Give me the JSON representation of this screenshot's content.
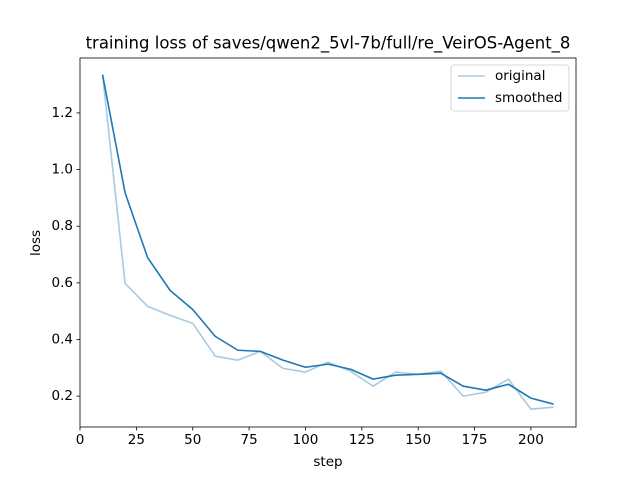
{
  "chart_data": {
    "type": "line",
    "title": "training loss of saves/qwen2_5vl-7b/full/re_VeirOS-Agent_8",
    "x_label": "step",
    "y_label": "loss",
    "x": [
      10,
      20,
      30,
      40,
      50,
      60,
      70,
      80,
      90,
      100,
      110,
      120,
      130,
      140,
      150,
      160,
      170,
      180,
      190,
      200,
      210
    ],
    "series": [
      {
        "name": "original",
        "color": "#a6cbe3",
        "values": [
          1.335,
          0.598,
          0.517,
          0.485,
          0.457,
          0.341,
          0.327,
          0.358,
          0.298,
          0.285,
          0.32,
          0.288,
          0.235,
          0.285,
          0.277,
          0.288,
          0.2,
          0.214,
          0.26,
          0.154,
          0.161
        ]
      },
      {
        "name": "smoothed",
        "color": "#1f77b4",
        "values": [
          1.335,
          0.918,
          0.689,
          0.573,
          0.506,
          0.411,
          0.362,
          0.358,
          0.327,
          0.302,
          0.313,
          0.295,
          0.26,
          0.274,
          0.277,
          0.281,
          0.235,
          0.221,
          0.242,
          0.193,
          0.172
        ]
      }
    ],
    "xlim": [
      0,
      220
    ],
    "xticks": [
      0,
      25,
      50,
      75,
      100,
      125,
      150,
      175,
      200
    ],
    "ylim": [
      0.091,
      1.394
    ],
    "yticks": [
      0.2,
      0.4,
      0.6,
      0.8,
      {
        "value": 1,
        "label": "1.0"
      },
      1.2
    ],
    "grid": false,
    "legend": "upper right"
  }
}
